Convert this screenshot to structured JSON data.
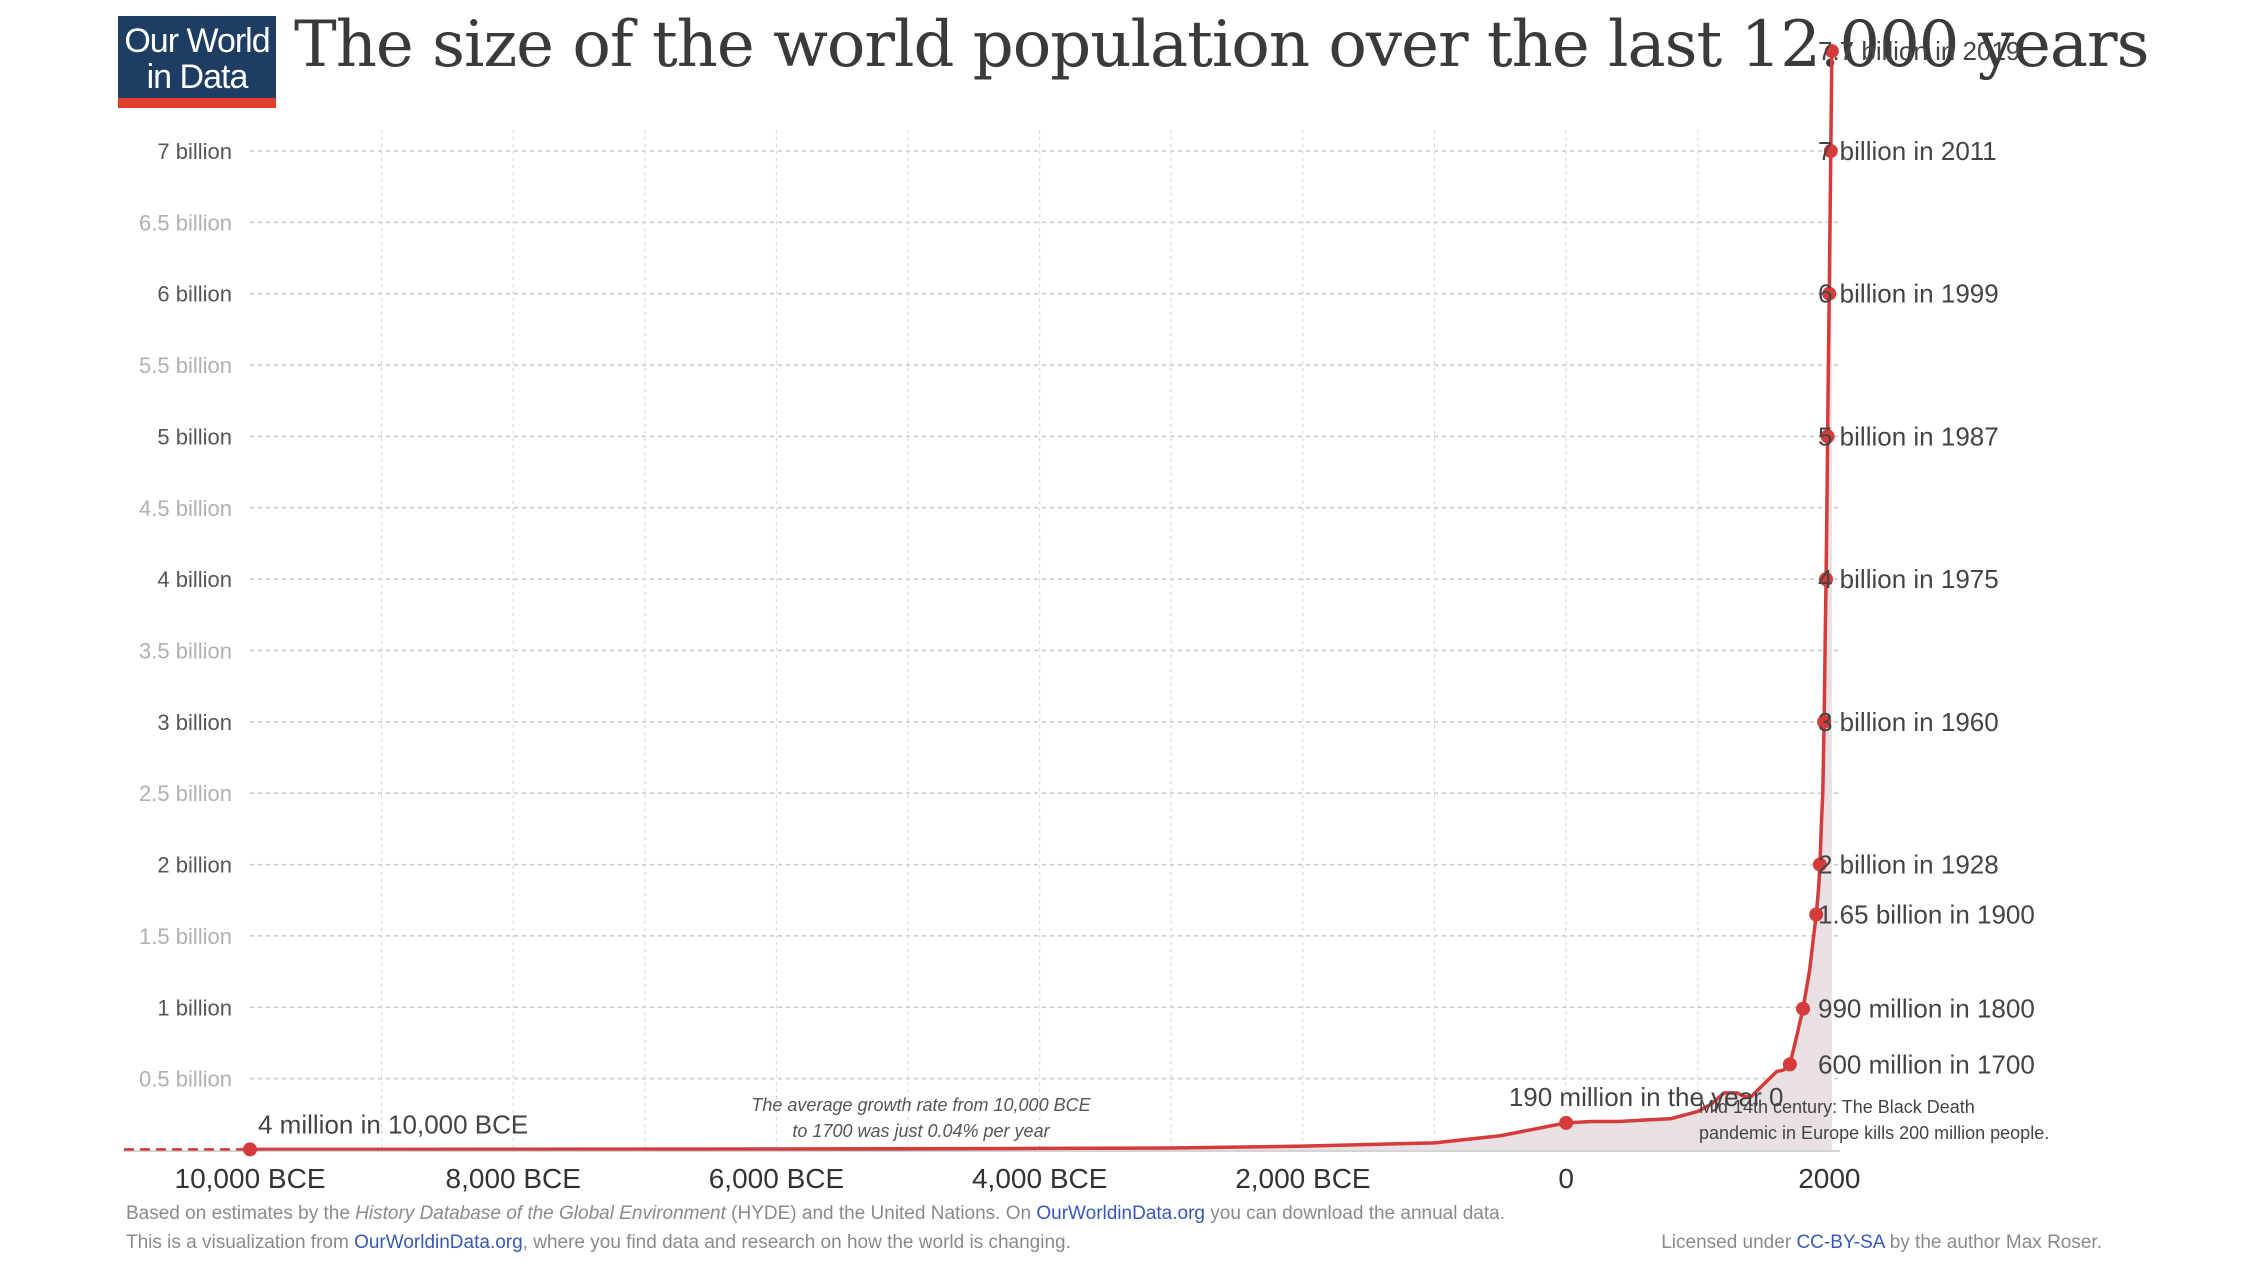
{
  "logo": {
    "line1": "Our World",
    "line2": "in Data"
  },
  "title": "The size of the world population over the last 12.000 years",
  "chart_data": {
    "type": "line",
    "title": "The size of the world population over the last 12.000 years",
    "xlabel": "",
    "ylabel": "",
    "xlim": [
      -10000,
      2020
    ],
    "ylim": [
      0,
      7.7
    ],
    "grid": true,
    "x_ticks": [
      {
        "value": -10000,
        "label": "10,000 BCE"
      },
      {
        "value": -8000,
        "label": "8,000 BCE"
      },
      {
        "value": -6000,
        "label": "6,000 BCE"
      },
      {
        "value": -4000,
        "label": "4,000 BCE"
      },
      {
        "value": -2000,
        "label": "2,000 BCE"
      },
      {
        "value": 0,
        "label": "0"
      },
      {
        "value": 2000,
        "label": "2000"
      }
    ],
    "y_ticks": [
      {
        "value": 0.5,
        "label": "0.5 billion"
      },
      {
        "value": 1,
        "label": "1 billion"
      },
      {
        "value": 1.5,
        "label": "1.5 billion"
      },
      {
        "value": 2,
        "label": "2 billion"
      },
      {
        "value": 2.5,
        "label": "2.5 billion"
      },
      {
        "value": 3,
        "label": "3 billion"
      },
      {
        "value": 3.5,
        "label": "3.5  billion"
      },
      {
        "value": 4,
        "label": "4 billion"
      },
      {
        "value": 4.5,
        "label": "4.5 billion"
      },
      {
        "value": 5,
        "label": "5 billion"
      },
      {
        "value": 5.5,
        "label": "5.5 billion"
      },
      {
        "value": 6,
        "label": "6 billion"
      },
      {
        "value": 6.5,
        "label": "6.5 billion"
      },
      {
        "value": 7,
        "label": "7 billion"
      }
    ],
    "series": [
      {
        "color": "#d63b3b",
        "points": [
          [
            -10000,
            0.004
          ],
          [
            -8000,
            0.005
          ],
          [
            -6000,
            0.007
          ],
          [
            -4000,
            0.011
          ],
          [
            -3000,
            0.014
          ],
          [
            -2000,
            0.027
          ],
          [
            -1000,
            0.05
          ],
          [
            -500,
            0.1
          ],
          [
            0,
            0.19
          ],
          [
            200,
            0.2
          ],
          [
            400,
            0.2
          ],
          [
            600,
            0.21
          ],
          [
            800,
            0.22
          ],
          [
            1000,
            0.27
          ],
          [
            1100,
            0.32
          ],
          [
            1200,
            0.4
          ],
          [
            1300,
            0.4
          ],
          [
            1340,
            0.38
          ],
          [
            1400,
            0.37
          ],
          [
            1500,
            0.46
          ],
          [
            1600,
            0.55
          ],
          [
            1650,
            0.56
          ],
          [
            1700,
            0.6
          ],
          [
            1750,
            0.79
          ],
          [
            1800,
            0.99
          ],
          [
            1850,
            1.26
          ],
          [
            1900,
            1.65
          ],
          [
            1910,
            1.75
          ],
          [
            1920,
            1.86
          ],
          [
            1928,
            2.0
          ],
          [
            1940,
            2.3
          ],
          [
            1950,
            2.5
          ],
          [
            1960,
            3.0
          ],
          [
            1970,
            3.7
          ],
          [
            1975,
            4.0
          ],
          [
            1980,
            4.4
          ],
          [
            1987,
            5.0
          ],
          [
            1990,
            5.3
          ],
          [
            1999,
            6.0
          ],
          [
            2005,
            6.5
          ],
          [
            2011,
            7.0
          ],
          [
            2019,
            7.7
          ]
        ]
      }
    ],
    "markers": [
      {
        "x": -10000,
        "y": 0.004,
        "label": "4 million in 10,000 BCE",
        "side": "above-right"
      },
      {
        "x": 0,
        "y": 0.19,
        "label": "190 million in the year 0",
        "side": "above"
      },
      {
        "x": 1700,
        "y": 0.6,
        "label": "600 million in 1700",
        "side": "right"
      },
      {
        "x": 1800,
        "y": 0.99,
        "label": "990 million in 1800",
        "side": "right"
      },
      {
        "x": 1900,
        "y": 1.65,
        "label": "1.65 billion in 1900",
        "side": "right"
      },
      {
        "x": 1928,
        "y": 2.0,
        "label": "2 billion in 1928",
        "side": "right"
      },
      {
        "x": 1960,
        "y": 3.0,
        "label": "3 billion in 1960",
        "side": "right"
      },
      {
        "x": 1975,
        "y": 4.0,
        "label": "4 billion in 1975",
        "side": "right"
      },
      {
        "x": 1987,
        "y": 5.0,
        "label": "5 billion in 1987",
        "side": "right"
      },
      {
        "x": 1999,
        "y": 6.0,
        "label": "6 billion in 1999",
        "side": "right"
      },
      {
        "x": 2011,
        "y": 7.0,
        "label": "7 billion in 2011",
        "side": "right"
      },
      {
        "x": 2019,
        "y": 7.7,
        "label": "7.7 billion in 2019",
        "side": "right"
      }
    ],
    "annotations": [
      {
        "lines": [
          "The average growth rate from 10,000 BCE",
          "to 1700 was just  0.04% per year"
        ],
        "style": "italic"
      },
      {
        "lines": [
          "Mid 14th century: The Black Death",
          "pandemic in Europe kills 200 million people."
        ],
        "style": "normal"
      }
    ]
  },
  "footer": {
    "line1_a": "Based on estimates by the ",
    "line1_b": "History Database of the Global Environment",
    "line1_c": " (HYDE) and the United Nations. On ",
    "line1_link": "OurWorldinData.org",
    "line1_d": " you can download the annual data.",
    "line2_a": "This is a visualization from ",
    "line2_link": "OurWorldinData.org",
    "line2_b": ", where you find data and research on how the world is changing.",
    "license_a": "Licensed under ",
    "license_link": "CC-BY-SA",
    "license_b": " by the author Max Roser."
  }
}
